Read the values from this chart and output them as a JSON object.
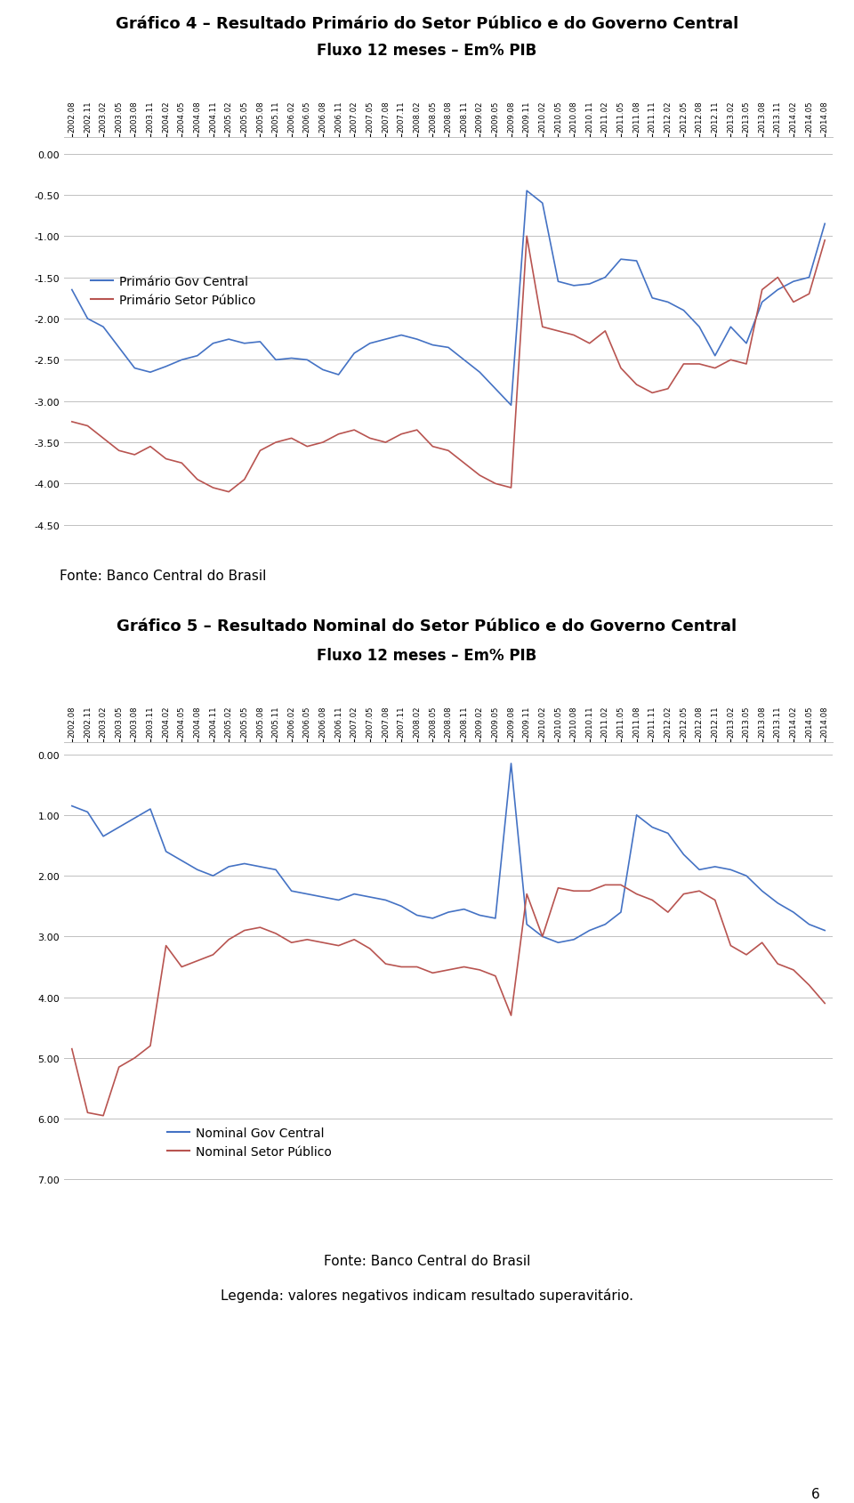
{
  "title1": "Gráfico 4 – Resultado Primário do Setor Público e do Governo Central",
  "subtitle1": "Fluxo 12 meses – Em% PIB",
  "title2": "Gráfico 5 – Resultado Nominal do Setor Público e do Governo Central",
  "subtitle2": "Fluxo 12 meses – Em% PIB",
  "fonte": "Fonte: Banco Central do Brasil",
  "legenda": "Legenda: valores negativos indicam resultado superavitário.",
  "x_labels": [
    "2002.08",
    "2002.11",
    "2003.02",
    "2003.05",
    "2003.08",
    "2003.11",
    "2004.02",
    "2004.05",
    "2004.08",
    "2004.11",
    "2005.02",
    "2005.05",
    "2005.08",
    "2005.11",
    "2006.02",
    "2006.05",
    "2006.08",
    "2006.11",
    "2007.02",
    "2007.05",
    "2007.08",
    "2007.11",
    "2008.02",
    "2008.05",
    "2008.08",
    "2008.11",
    "2009.02",
    "2009.05",
    "2009.08",
    "2009.11",
    "2010.02",
    "2010.05",
    "2010.08",
    "2010.11",
    "2011.02",
    "2011.05",
    "2011.08",
    "2011.11",
    "2012.02",
    "2012.05",
    "2012.08",
    "2012.11",
    "2013.02",
    "2013.05",
    "2013.08",
    "2013.11",
    "2014.02",
    "2014.05",
    "2014.08"
  ],
  "primario_gov_central": [
    -1.65,
    -2.0,
    -2.1,
    -2.35,
    -2.6,
    -2.65,
    -2.58,
    -2.5,
    -2.45,
    -2.3,
    -2.25,
    -2.3,
    -2.28,
    -2.5,
    -2.48,
    -2.5,
    -2.62,
    -2.68,
    -2.42,
    -2.3,
    -2.25,
    -2.2,
    -2.25,
    -2.32,
    -2.35,
    -2.5,
    -2.65,
    -2.85,
    -3.05,
    -0.45,
    -0.6,
    -1.55,
    -1.6,
    -1.58,
    -1.5,
    -1.28,
    -1.3,
    -1.75,
    -1.8,
    -1.9,
    -2.1,
    -2.45,
    -2.1,
    -2.3,
    -1.8,
    -1.65,
    -1.55,
    -1.5,
    -0.85
  ],
  "primario_setor_publico": [
    -3.25,
    -3.3,
    -3.45,
    -3.6,
    -3.65,
    -3.55,
    -3.7,
    -3.75,
    -3.95,
    -4.05,
    -4.1,
    -3.95,
    -3.6,
    -3.5,
    -3.45,
    -3.55,
    -3.5,
    -3.4,
    -3.35,
    -3.45,
    -3.5,
    -3.4,
    -3.35,
    -3.55,
    -3.6,
    -3.75,
    -3.9,
    -4.0,
    -4.05,
    -1.0,
    -2.1,
    -2.15,
    -2.2,
    -2.3,
    -2.15,
    -2.6,
    -2.8,
    -2.9,
    -2.85,
    -2.55,
    -2.55,
    -2.6,
    -2.5,
    -2.55,
    -1.65,
    -1.5,
    -1.8,
    -1.7,
    -1.05
  ],
  "nominal_gov_central": [
    0.85,
    0.95,
    1.35,
    1.2,
    1.05,
    0.9,
    1.6,
    1.75,
    1.9,
    2.0,
    1.85,
    1.8,
    1.85,
    1.9,
    2.25,
    2.3,
    2.35,
    2.4,
    2.3,
    2.35,
    2.4,
    2.5,
    2.65,
    2.7,
    2.6,
    2.55,
    2.65,
    2.7,
    0.15,
    2.8,
    3.0,
    3.1,
    3.05,
    2.9,
    2.8,
    2.6,
    1.0,
    1.2,
    1.3,
    1.65,
    1.9,
    1.85,
    1.9,
    2.0,
    2.25,
    2.45,
    2.6,
    2.8,
    2.9
  ],
  "nominal_setor_publico": [
    4.85,
    5.9,
    5.95,
    5.15,
    5.0,
    4.8,
    3.15,
    3.5,
    3.4,
    3.3,
    3.05,
    2.9,
    2.85,
    2.95,
    3.1,
    3.05,
    3.1,
    3.15,
    3.05,
    3.2,
    3.45,
    3.5,
    3.5,
    3.6,
    3.55,
    3.5,
    3.55,
    3.65,
    4.3,
    2.3,
    3.0,
    2.2,
    2.25,
    2.25,
    2.15,
    2.15,
    2.3,
    2.4,
    2.6,
    2.3,
    2.25,
    2.4,
    3.15,
    3.3,
    3.1,
    3.45,
    3.55,
    3.8,
    4.1
  ],
  "color_blue": "#4472C4",
  "color_red": "#B85450",
  "color_grid": "#C0C0C0",
  "bg_color": "#FFFFFF",
  "title_fontsize": 13,
  "subtitle_fontsize": 12,
  "tick_fontsize": 8,
  "legend_fontsize": 10,
  "fonte_fontsize": 11,
  "legenda_fontsize": 11,
  "chart1_yticks": [
    0.0,
    -0.5,
    -1.0,
    -1.5,
    -2.0,
    -2.5,
    -3.0,
    -3.5,
    -4.0,
    -4.5
  ],
  "chart2_yticks": [
    0.0,
    1.0,
    2.0,
    3.0,
    4.0,
    5.0,
    6.0,
    7.0
  ]
}
